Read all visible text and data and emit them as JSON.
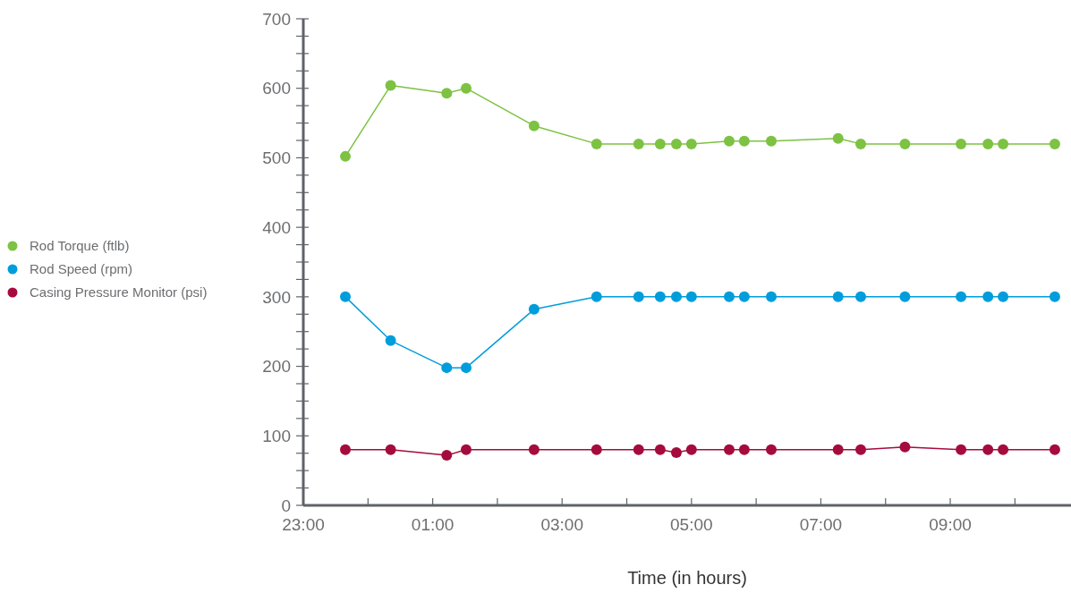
{
  "chart_data": {
    "type": "line",
    "xlabel": "Time (in hours)",
    "x": [
      "2000-01-01T23:39",
      "2000-01-02T00:21",
      "2000-01-02T01:13",
      "2000-01-02T01:31",
      "2000-01-02T02:34",
      "2000-01-02T03:32",
      "2000-01-02T04:11",
      "2000-01-02T04:31",
      "2000-01-02T04:46",
      "2000-01-02T05:00",
      "2000-01-02T05:35",
      "2000-01-02T05:49",
      "2000-01-02T06:14",
      "2000-01-02T07:16",
      "2000-01-02T07:37",
      "2000-01-02T08:18",
      "2000-01-02T09:10",
      "2000-01-02T09:35",
      "2000-01-02T09:49",
      "2000-01-02T10:37"
    ],
    "series": [
      {
        "name": "Rod Torque (ftlb)",
        "color": "#7dc242",
        "values": [
          502,
          604,
          593,
          600,
          546,
          520,
          520,
          520,
          520,
          520,
          524,
          524,
          524,
          528,
          520,
          520,
          520,
          520,
          520,
          520
        ]
      },
      {
        "name": "Rod Speed (rpm)",
        "color": "#009ddc",
        "values": [
          300,
          237,
          198,
          198,
          282,
          300,
          300,
          300,
          300,
          300,
          300,
          300,
          300,
          300,
          300,
          300,
          300,
          300,
          300,
          300
        ]
      },
      {
        "name": "Casing Pressure Monitor (psi)",
        "color": "#a50b3c",
        "values": [
          80,
          80,
          72,
          80,
          80,
          80,
          80,
          80,
          76,
          80,
          80,
          80,
          80,
          80,
          80,
          84,
          80,
          80,
          80,
          80
        ]
      }
    ],
    "xlim": [
      "2000-01-01T23:00",
      "2000-01-02T10:52"
    ],
    "xticks": [
      {
        "value": "2000-01-01T23:00",
        "label": "23:00"
      },
      {
        "value": "2000-01-02T00:00",
        "label": null
      },
      {
        "value": "2000-01-02T01:00",
        "label": "01:00"
      },
      {
        "value": "2000-01-02T02:00",
        "label": null
      },
      {
        "value": "2000-01-02T03:00",
        "label": "03:00"
      },
      {
        "value": "2000-01-02T04:00",
        "label": null
      },
      {
        "value": "2000-01-02T05:00",
        "label": "05:00"
      },
      {
        "value": "2000-01-02T06:00",
        "label": null
      },
      {
        "value": "2000-01-02T07:00",
        "label": "07:00"
      },
      {
        "value": "2000-01-02T08:00",
        "label": null
      },
      {
        "value": "2000-01-02T09:00",
        "label": "09:00"
      },
      {
        "value": "2000-01-02T10:00",
        "label": null
      }
    ],
    "ylim": [
      0,
      700
    ],
    "yticks": [
      0,
      {
        "value": 25,
        "label": null
      },
      {
        "value": 50,
        "label": null
      },
      {
        "value": 75,
        "label": null
      },
      100,
      {
        "value": 125,
        "label": null
      },
      {
        "value": 150,
        "label": null
      },
      {
        "value": 175,
        "label": null
      },
      200,
      {
        "value": 225,
        "label": null
      },
      {
        "value": 250,
        "label": null
      },
      {
        "value": 275,
        "label": null
      },
      300,
      {
        "value": 325,
        "label": null
      },
      {
        "value": 350,
        "label": null
      },
      {
        "value": 375,
        "label": null
      },
      400,
      {
        "value": 425,
        "label": null
      },
      {
        "value": 450,
        "label": null
      },
      {
        "value": 475,
        "label": null
      },
      500,
      {
        "value": 525,
        "label": null
      },
      {
        "value": 550,
        "label": null
      },
      {
        "value": 575,
        "label": null
      },
      600,
      {
        "value": 625,
        "label": null
      },
      {
        "value": 650,
        "label": null
      },
      {
        "value": 675,
        "label": null
      },
      700
    ],
    "marker": "circle",
    "line_style": "solid",
    "legend": "left",
    "grid": false
  }
}
